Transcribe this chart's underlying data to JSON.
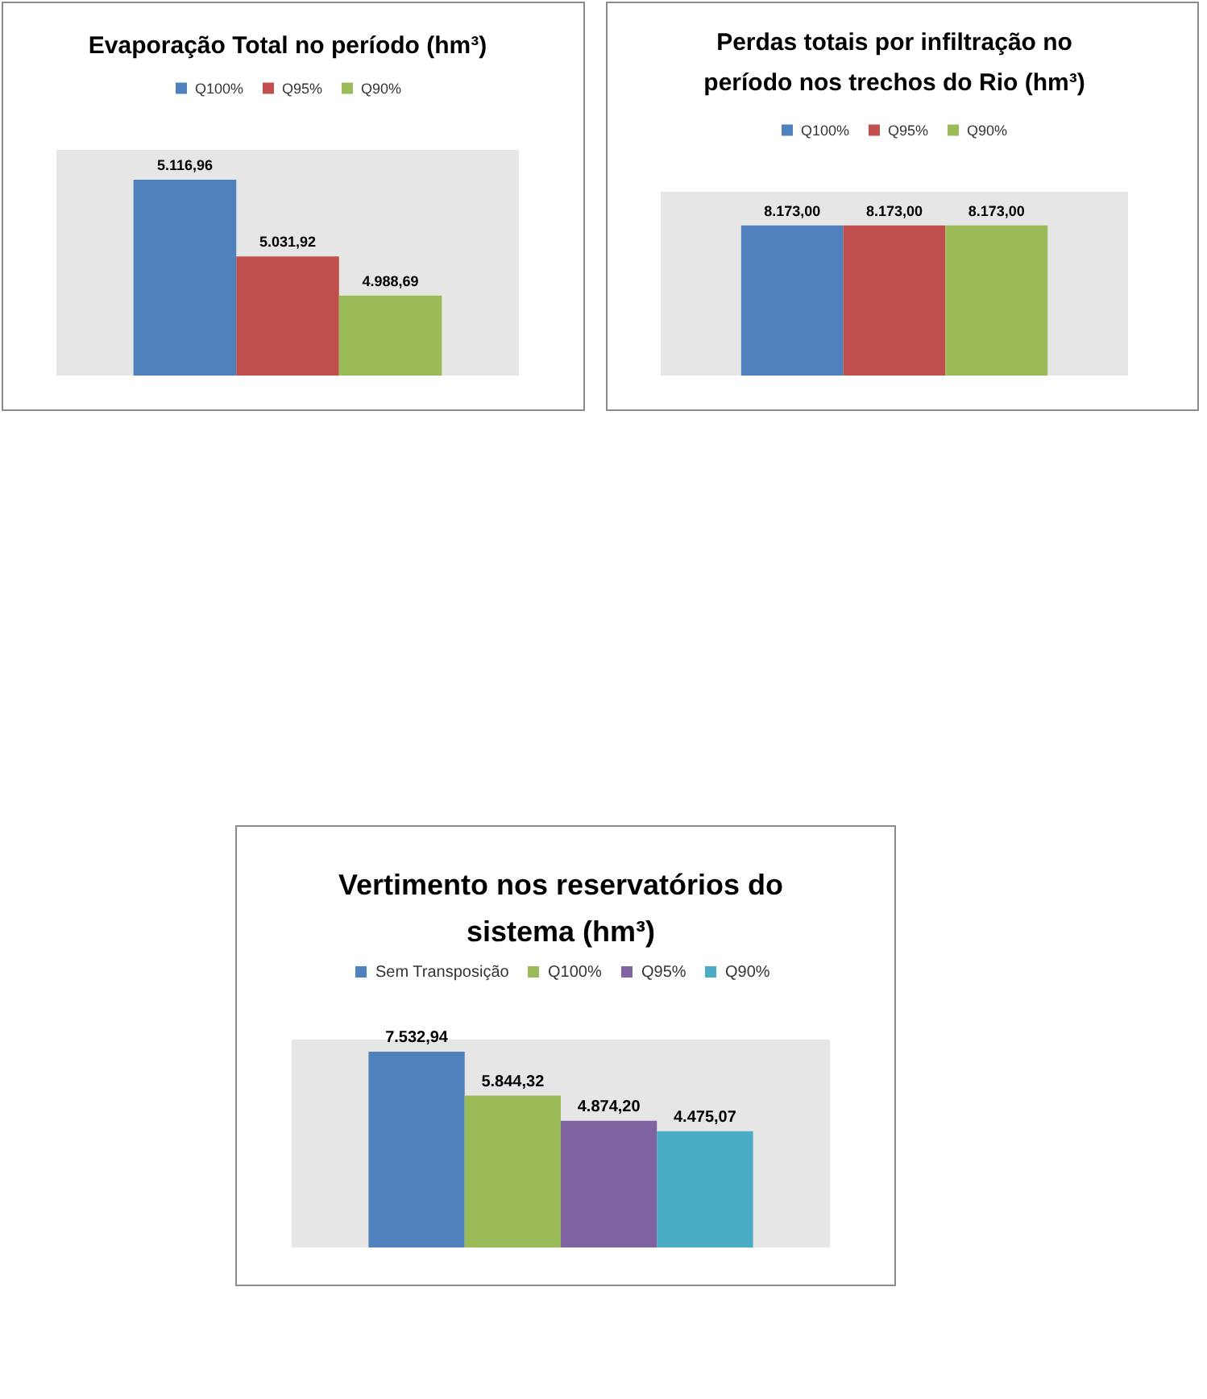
{
  "chart_data": [
    {
      "type": "bar",
      "title": "Evaporação Total no período (hm³)",
      "categories": [
        null
      ],
      "series": [
        {
          "name": "Q100%",
          "color": "#4f81bd",
          "values": [
            5116.96
          ],
          "value_labels": [
            "5.116,96"
          ]
        },
        {
          "name": "Q95%",
          "color": "#c0504d",
          "values": [
            5031.92
          ],
          "value_labels": [
            "5.031,92"
          ]
        },
        {
          "name": "Q90%",
          "color": "#9bbb59",
          "values": [
            4988.69
          ],
          "value_labels": [
            "4.988,69"
          ]
        }
      ],
      "ylim": [
        4900,
        5150
      ],
      "tick_labels": false,
      "legend": "top"
    },
    {
      "type": "bar",
      "title": "Perdas totais por infiltração no período nos trechos do Rio (hm³)",
      "categories": [
        null
      ],
      "series": [
        {
          "name": "Q100%",
          "color": "#4f81bd",
          "values": [
            8173
          ],
          "value_labels": [
            "8.173,00"
          ]
        },
        {
          "name": "Q95%",
          "color": "#c0504d",
          "values": [
            8173
          ],
          "value_labels": [
            "8.173,00"
          ]
        },
        {
          "name": "Q90%",
          "color": "#9bbb59",
          "values": [
            8173
          ],
          "value_labels": [
            "8.173,00"
          ]
        }
      ],
      "ylim": [
        0,
        10000
      ],
      "tick_labels": false,
      "legend": "top"
    },
    {
      "type": "bar",
      "title": "Vertimento nos reservatórios do sistema (hm³)",
      "categories": [
        null
      ],
      "series": [
        {
          "name": "Sem Transposição",
          "color": "#4f81bd",
          "values": [
            7532.94
          ],
          "value_labels": [
            "7.532,94"
          ]
        },
        {
          "name": "Q100%",
          "color": "#9bbb59",
          "values": [
            5844.32
          ],
          "value_labels": [
            "5.844,32"
          ]
        },
        {
          "name": "Q95%",
          "color": "#8064a2",
          "values": [
            4874.2
          ],
          "value_labels": [
            "4.874,20"
          ]
        },
        {
          "name": "Q90%",
          "color": "#4bacc6",
          "values": [
            4475.07
          ],
          "value_labels": [
            "4.475,07"
          ]
        }
      ],
      "ylim": [
        0,
        8000
      ],
      "tick_labels": false,
      "legend": "top"
    }
  ]
}
